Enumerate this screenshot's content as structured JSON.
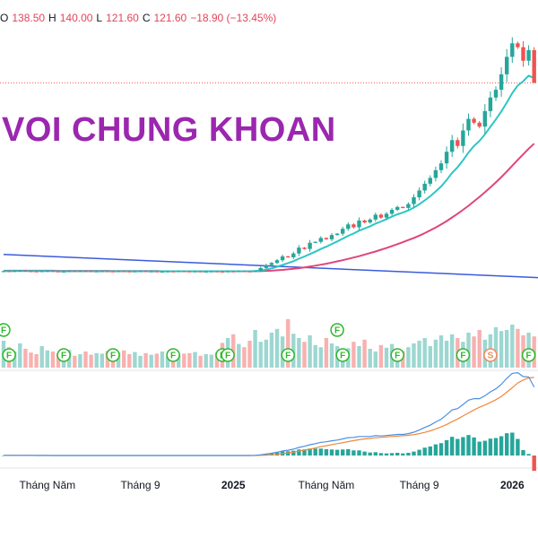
{
  "header": {
    "open_label": "O",
    "open": "138.50",
    "high_label": "H",
    "high": "140.00",
    "low_label": "L",
    "low": "121.60",
    "close_label": "C",
    "close": "121.60",
    "change": "−18.90 (−13.45%)"
  },
  "watermark": "VOI CHUNG KHOAN",
  "colors": {
    "up": "#26a69a",
    "down": "#ef5350",
    "ma_fast": "#2ec5c5",
    "ma_slow": "#e0457b",
    "trendline": "#3b5bdb",
    "macd_line": "#4a90e2",
    "signal_line": "#f0883e",
    "hist_up": "#26a69a",
    "hist_down": "#ef5350",
    "watermark": "#9b27af",
    "marker": "#2eb82e",
    "marker_s": "#f08a5d"
  },
  "x_axis": {
    "ticks": [
      {
        "label": "Tháng Năm",
        "week": 8,
        "bold": false
      },
      {
        "label": "Tháng 9",
        "week": 25,
        "bold": false
      },
      {
        "label": "2025",
        "week": 42,
        "bold": true
      },
      {
        "label": "Tháng Năm",
        "week": 59,
        "bold": false
      },
      {
        "label": "Tháng 9",
        "week": 76,
        "bold": false
      },
      {
        "label": "2026",
        "week": 93,
        "bold": true
      }
    ]
  },
  "markers": [
    {
      "week": 0,
      "row": 1,
      "label": "F"
    },
    {
      "week": 1,
      "row": 2,
      "label": "F"
    },
    {
      "week": 11,
      "row": 2,
      "label": "F"
    },
    {
      "week": 20,
      "row": 2,
      "label": "F"
    },
    {
      "week": 31,
      "row": 2,
      "label": "F"
    },
    {
      "week": 40,
      "row": 2,
      "label": "F"
    },
    {
      "week": 41,
      "row": 2,
      "label": "F"
    },
    {
      "week": 52,
      "row": 2,
      "label": "F"
    },
    {
      "week": 61,
      "row": 1,
      "label": "F"
    },
    {
      "week": 62,
      "row": 2,
      "label": "F"
    },
    {
      "week": 72,
      "row": 2,
      "label": "F"
    },
    {
      "week": 84,
      "row": 2,
      "label": "F"
    },
    {
      "week": 89,
      "row": 2,
      "label": "S"
    },
    {
      "week": 96,
      "row": 2,
      "label": "F"
    }
  ],
  "chart_data": {
    "type": "candlestick",
    "x_unit": "week",
    "last_bar": {
      "open": 138.5,
      "high": 140.0,
      "low": 121.6,
      "close": 121.6
    },
    "ylim": [
      0,
      152
    ],
    "ohlc_close": [
      24.4,
      24.3,
      24.5,
      24.6,
      24.4,
      24.3,
      24.2,
      24.4,
      24.5,
      24.3,
      24.1,
      24.2,
      24.4,
      24.3,
      24.5,
      24.4,
      24.2,
      24.3,
      24.4,
      24.3,
      24.2,
      24.4,
      24.3,
      24.2,
      24.3,
      24.4,
      24.2,
      24.3,
      24.1,
      24.2,
      24.3,
      24.2,
      24.4,
      24.3,
      24.2,
      24.3,
      24.1,
      24.2,
      24.3,
      24.2,
      24.1,
      24.3,
      24.2,
      24.4,
      24.3,
      24.2,
      24.5,
      26.0,
      27.5,
      28.6,
      30.0,
      32.0,
      31.5,
      33.5,
      36.5,
      35.8,
      39.0,
      39.5,
      41.5,
      40.8,
      43.0,
      43.7,
      46.2,
      48.5,
      47.0,
      50.5,
      49.5,
      51.0,
      53.5,
      52.0,
      54.0,
      56.0,
      57.5,
      57.0,
      59.0,
      62.5,
      66.0,
      69.5,
      72.5,
      76.5,
      80.0,
      86.0,
      92.0,
      89.0,
      97.0,
      103.0,
      101.0,
      99.0,
      107.0,
      114.0,
      118.0,
      126.0,
      135.0,
      142.0,
      140.0,
      133.0,
      138.5,
      121.6
    ],
    "ma_fast": [
      24.4,
      24.4,
      24.4,
      24.4,
      24.4,
      24.4,
      24.4,
      24.4,
      24.4,
      24.4,
      24.3,
      24.3,
      24.3,
      24.3,
      24.3,
      24.3,
      24.3,
      24.3,
      24.3,
      24.3,
      24.3,
      24.3,
      24.3,
      24.3,
      24.3,
      24.3,
      24.3,
      24.3,
      24.3,
      24.3,
      24.3,
      24.3,
      24.3,
      24.3,
      24.3,
      24.3,
      24.3,
      24.3,
      24.3,
      24.3,
      24.3,
      24.3,
      24.3,
      24.3,
      24.3,
      24.3,
      24.4,
      24.7,
      25.2,
      25.8,
      26.6,
      27.6,
      28.5,
      29.5,
      30.8,
      31.9,
      33.2,
      34.4,
      35.8,
      37.0,
      38.4,
      39.7,
      41.1,
      42.6,
      43.8,
      45.3,
      46.4,
      47.5,
      48.9,
      50.0,
      51.2,
      52.5,
      53.7,
      54.6,
      55.7,
      57.2,
      58.9,
      60.9,
      63.0,
      65.5,
      68.1,
      71.4,
      75.1,
      78.0,
      81.6,
      85.6,
      89.0,
      91.6,
      95.0,
      98.9,
      102.7,
      106.8,
      111.4,
      116.3,
      120.2,
      122.4,
      125.3,
      124.0
    ],
    "ma_slow": [
      24.6,
      24.6,
      24.6,
      24.6,
      24.6,
      24.6,
      24.6,
      24.6,
      24.6,
      24.6,
      24.5,
      24.5,
      24.5,
      24.5,
      24.5,
      24.5,
      24.5,
      24.5,
      24.5,
      24.5,
      24.4,
      24.4,
      24.4,
      24.4,
      24.4,
      24.4,
      24.4,
      24.4,
      24.4,
      24.3,
      24.3,
      24.3,
      24.3,
      24.3,
      24.3,
      24.3,
      24.3,
      24.3,
      24.3,
      24.3,
      24.3,
      24.3,
      24.3,
      24.3,
      24.3,
      24.3,
      24.3,
      24.4,
      24.5,
      24.6,
      24.8,
      25.0,
      25.3,
      25.6,
      25.9,
      26.3,
      26.7,
      27.2,
      27.7,
      28.2,
      28.8,
      29.4,
      30.0,
      30.7,
      31.4,
      32.1,
      32.9,
      33.7,
      34.5,
      35.4,
      36.3,
      37.3,
      38.3,
      39.3,
      40.4,
      41.5,
      42.7,
      44.0,
      45.4,
      46.9,
      48.5,
      50.2,
      52.1,
      54.0,
      56.0,
      58.1,
      60.4,
      62.7,
      65.1,
      67.6,
      70.2,
      72.9,
      75.8,
      78.8,
      81.8,
      84.7,
      87.6,
      90.2
    ],
    "volume": [
      50,
      38,
      30,
      45,
      35,
      28,
      25,
      40,
      32,
      30,
      26,
      28,
      33,
      22,
      25,
      30,
      24,
      27,
      26,
      31,
      23,
      28,
      32,
      25,
      29,
      22,
      27,
      24,
      26,
      30,
      21,
      28,
      24,
      26,
      27,
      29,
      22,
      25,
      24,
      28,
      46,
      55,
      62,
      44,
      38,
      50,
      70,
      48,
      52,
      65,
      72,
      58,
      90,
      63,
      55,
      48,
      60,
      42,
      38,
      55,
      45,
      40,
      33,
      36,
      48,
      40,
      52,
      35,
      30,
      42,
      37,
      44,
      35,
      31,
      38,
      45,
      50,
      55,
      40,
      52,
      60,
      50,
      62,
      55,
      48,
      65,
      58,
      70,
      52,
      62,
      75,
      68,
      70,
      80,
      72,
      60,
      65,
      58
    ],
    "macd": [
      0.1,
      0.1,
      0.1,
      0.1,
      0.1,
      0.1,
      0.0,
      0.0,
      0.0,
      0.0,
      0.0,
      0.0,
      0.0,
      0.0,
      0.0,
      0.0,
      0.0,
      0.0,
      0.0,
      0.0,
      0.0,
      0.0,
      0.0,
      0.0,
      0.0,
      0.0,
      0.0,
      0.0,
      0.0,
      0.0,
      0.0,
      0.0,
      0.0,
      0.0,
      0.0,
      0.0,
      0.0,
      0.0,
      0.0,
      0.0,
      0.0,
      0.0,
      0.0,
      0.0,
      0.0,
      0.0,
      0.1,
      0.4,
      0.8,
      1.2,
      1.7,
      2.4,
      2.8,
      3.4,
      4.3,
      4.9,
      5.7,
      6.3,
      7.0,
      7.3,
      7.8,
      8.2,
      8.8,
      9.5,
      9.6,
      10.1,
      10.1,
      10.1,
      10.5,
      10.4,
      10.6,
      10.9,
      11.2,
      11.2,
      11.6,
      12.4,
      13.5,
      14.9,
      16.1,
      17.8,
      19.3,
      21.6,
      24.2,
      24.9,
      27.1,
      29.4,
      30.2,
      30.2,
      31.7,
      33.8,
      35.4,
      37.8,
      41.0,
      43.6,
      44.0,
      41.9,
      41.7,
      36.4
    ],
    "signal": [
      0.1,
      0.1,
      0.1,
      0.1,
      0.1,
      0.1,
      0.1,
      0.1,
      0.1,
      0.0,
      0.0,
      0.0,
      0.0,
      0.0,
      0.0,
      0.0,
      0.0,
      0.0,
      0.0,
      0.0,
      0.0,
      0.0,
      0.0,
      0.0,
      0.0,
      0.0,
      0.0,
      0.0,
      0.0,
      0.0,
      0.0,
      0.0,
      0.0,
      0.0,
      0.0,
      0.0,
      0.0,
      0.0,
      0.0,
      0.0,
      0.0,
      0.0,
      0.0,
      0.0,
      0.0,
      0.0,
      0.0,
      0.1,
      0.2,
      0.4,
      0.6,
      1.0,
      1.4,
      1.8,
      2.3,
      2.9,
      3.4,
      4.0,
      4.7,
      5.2,
      5.8,
      6.3,
      6.8,
      7.4,
      7.9,
      8.4,
      8.8,
      9.1,
      9.4,
      9.6,
      9.9,
      10.1,
      10.3,
      10.5,
      10.7,
      11.1,
      11.6,
      12.3,
      13.1,
      14.1,
      15.2,
      16.5,
      18.0,
      19.4,
      21.0,
      22.6,
      24.2,
      25.6,
      26.8,
      28.2,
      29.6,
      31.4,
      33.6,
      36.0,
      38.5,
      40.1,
      41.2,
      41.5
    ],
    "trendline": {
      "from": {
        "week": 0,
        "value": 33.0
      },
      "to": {
        "week": 106,
        "value": 20.0
      }
    }
  }
}
